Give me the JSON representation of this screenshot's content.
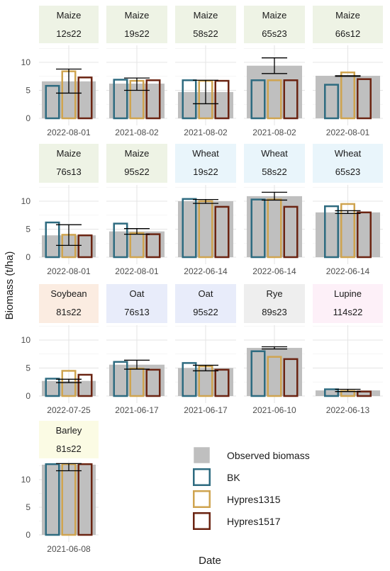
{
  "chart_data": {
    "type": "bar",
    "xlabel": "Date",
    "ylabel": "Biomass (t/ha)",
    "ylim": [
      0,
      13
    ],
    "yticks": [
      0,
      5,
      10
    ],
    "grid": true,
    "legend_position": "bottom-right",
    "legend": {
      "observed_label": "Observed biomass",
      "series": [
        {
          "name": "BK",
          "color": "#2e6b80"
        },
        {
          "name": "Hypres1315",
          "color": "#cfa450"
        },
        {
          "name": "Hypres1517",
          "color": "#6b2412"
        }
      ]
    },
    "colors": {
      "observed": "#bfbfbf",
      "error_bar": "#000000",
      "strip": {
        "Maize": "#eef3e5",
        "Wheat": "#e9f5fb",
        "Soybean": "#fbece1",
        "Oat": "#e8ecfa",
        "Rye": "#eeeeee",
        "Lupine": "#fdf0f8",
        "Barley": "#fbfbe4"
      }
    },
    "panels": [
      {
        "crop": "Maize",
        "site": "12s22",
        "date": "2022-08-01",
        "observed": 6.6,
        "error": [
          4.5,
          8.8
        ],
        "simulated": [
          5.8,
          8.4,
          7.3
        ]
      },
      {
        "crop": "Maize",
        "site": "19s22",
        "date": "2021-08-02",
        "observed": 6.2,
        "error": [
          5.0,
          7.2
        ],
        "simulated": [
          6.9,
          6.7,
          6.8
        ]
      },
      {
        "crop": "Maize",
        "site": "58s22",
        "date": "2021-08-02",
        "observed": 4.7,
        "error": [
          2.6,
          6.8
        ],
        "simulated": [
          6.8,
          6.7,
          6.7
        ]
      },
      {
        "crop": "Maize",
        "site": "65s23",
        "date": "2021-08-02",
        "observed": 9.4,
        "error": [
          8.0,
          10.8
        ],
        "simulated": [
          6.8,
          6.8,
          6.8
        ]
      },
      {
        "crop": "Maize",
        "site": "66s12",
        "date": "2022-08-01",
        "observed": 7.6,
        "error": [
          7.5,
          7.6
        ],
        "simulated": [
          6.0,
          8.2,
          7.0
        ]
      },
      {
        "crop": "Maize",
        "site": "76s13",
        "date": "2022-08-01",
        "observed": 3.9,
        "error": [
          2.1,
          5.8
        ],
        "simulated": [
          6.2,
          4.0,
          3.9
        ]
      },
      {
        "crop": "Maize",
        "site": "95s22",
        "date": "2022-08-01",
        "observed": 4.6,
        "error": [
          4.1,
          5.1
        ],
        "simulated": [
          6.0,
          4.3,
          4.1
        ]
      },
      {
        "crop": "Wheat",
        "site": "19s22",
        "date": "2022-06-14",
        "observed": 10.0,
        "error": [
          9.6,
          10.3
        ],
        "simulated": [
          10.4,
          10.0,
          9.0
        ]
      },
      {
        "crop": "Wheat",
        "site": "58s22",
        "date": "2022-06-14",
        "observed": 10.9,
        "error": [
          10.2,
          11.6
        ],
        "simulated": [
          10.3,
          10.3,
          9.0
        ]
      },
      {
        "crop": "Wheat",
        "site": "65s23",
        "date": "2022-06-14",
        "observed": 8.0,
        "error": [
          7.8,
          8.3
        ],
        "simulated": [
          9.1,
          9.5,
          8.0
        ]
      },
      {
        "crop": "Soybean",
        "site": "81s22",
        "date": "2022-07-25",
        "observed": 2.7,
        "error": [
          2.4,
          3.0
        ],
        "simulated": [
          3.1,
          4.5,
          3.8
        ]
      },
      {
        "crop": "Oat",
        "site": "76s13",
        "date": "2021-06-17",
        "observed": 5.6,
        "error": [
          4.8,
          6.4
        ],
        "simulated": [
          6.1,
          4.9,
          4.7
        ]
      },
      {
        "crop": "Oat",
        "site": "95s22",
        "date": "2021-06-17",
        "observed": 5.0,
        "error": [
          4.5,
          5.5
        ],
        "simulated": [
          5.9,
          5.3,
          4.7
        ]
      },
      {
        "crop": "Rye",
        "site": "89s23",
        "date": "2021-06-10",
        "observed": 8.6,
        "error": [
          8.4,
          8.8
        ],
        "simulated": [
          8.0,
          7.0,
          6.6
        ]
      },
      {
        "crop": "Lupine",
        "site": "114s22",
        "date": "2022-06-13",
        "observed": 1.0,
        "error": [
          0.8,
          1.2
        ],
        "simulated": [
          1.2,
          0.9,
          0.8
        ]
      },
      {
        "crop": "Barley",
        "site": "81s22",
        "date": "2021-06-08",
        "observed": 12.7,
        "error": [
          11.6,
          12.9
        ],
        "simulated": [
          12.8,
          12.8,
          12.8
        ]
      }
    ]
  }
}
